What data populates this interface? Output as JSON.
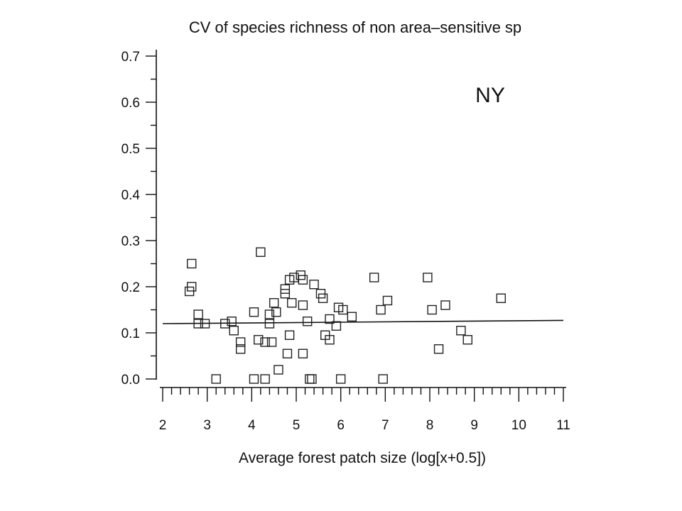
{
  "chart_data": {
    "type": "scatter",
    "title": "CV of species richness of non area–sensitive sp",
    "annotation": "NY",
    "xlabel": "Average forest patch size (log[x+0.5])",
    "ylabel": "",
    "xlim": [
      2,
      11
    ],
    "ylim": [
      0,
      0.7
    ],
    "xticks": [
      "2",
      "3",
      "4",
      "5",
      "6",
      "7",
      "8",
      "9",
      "10",
      "11"
    ],
    "yticks": [
      "0.0",
      "0.1",
      "0.2",
      "0.3",
      "0.4",
      "0.5",
      "0.6",
      "0.7"
    ],
    "grid": false,
    "marker": "open-square",
    "points": [
      [
        2.65,
        0.25
      ],
      [
        2.65,
        0.2
      ],
      [
        2.6,
        0.19
      ],
      [
        2.8,
        0.14
      ],
      [
        2.8,
        0.12
      ],
      [
        2.95,
        0.12
      ],
      [
        3.2,
        0.0
      ],
      [
        3.4,
        0.12
      ],
      [
        3.55,
        0.125
      ],
      [
        3.6,
        0.105
      ],
      [
        3.75,
        0.08
      ],
      [
        3.75,
        0.065
      ],
      [
        4.05,
        0.145
      ],
      [
        4.05,
        0.0
      ],
      [
        4.15,
        0.085
      ],
      [
        4.2,
        0.275
      ],
      [
        4.3,
        0.08
      ],
      [
        4.3,
        0.0
      ],
      [
        4.4,
        0.14
      ],
      [
        4.4,
        0.12
      ],
      [
        4.45,
        0.08
      ],
      [
        4.5,
        0.165
      ],
      [
        4.55,
        0.145
      ],
      [
        4.6,
        0.02
      ],
      [
        4.75,
        0.195
      ],
      [
        4.75,
        0.185
      ],
      [
        4.8,
        0.055
      ],
      [
        4.85,
        0.215
      ],
      [
        4.85,
        0.095
      ],
      [
        4.9,
        0.165
      ],
      [
        4.95,
        0.22
      ],
      [
        5.1,
        0.225
      ],
      [
        5.15,
        0.215
      ],
      [
        5.15,
        0.16
      ],
      [
        5.15,
        0.055
      ],
      [
        5.25,
        0.125
      ],
      [
        5.3,
        0.0
      ],
      [
        5.35,
        0.0
      ],
      [
        5.4,
        0.205
      ],
      [
        5.55,
        0.185
      ],
      [
        5.6,
        0.175
      ],
      [
        5.65,
        0.095
      ],
      [
        5.75,
        0.085
      ],
      [
        5.75,
        0.13
      ],
      [
        5.9,
        0.115
      ],
      [
        5.95,
        0.155
      ],
      [
        6.05,
        0.15
      ],
      [
        6.0,
        0.0
      ],
      [
        6.25,
        0.135
      ],
      [
        6.75,
        0.22
      ],
      [
        6.9,
        0.15
      ],
      [
        6.95,
        0.0
      ],
      [
        7.05,
        0.17
      ],
      [
        7.95,
        0.22
      ],
      [
        8.05,
        0.15
      ],
      [
        8.2,
        0.065
      ],
      [
        8.35,
        0.16
      ],
      [
        8.7,
        0.105
      ],
      [
        8.85,
        0.085
      ],
      [
        9.6,
        0.175
      ]
    ],
    "fit_line": {
      "x": [
        2,
        11
      ],
      "y": [
        0.12,
        0.127
      ]
    }
  }
}
